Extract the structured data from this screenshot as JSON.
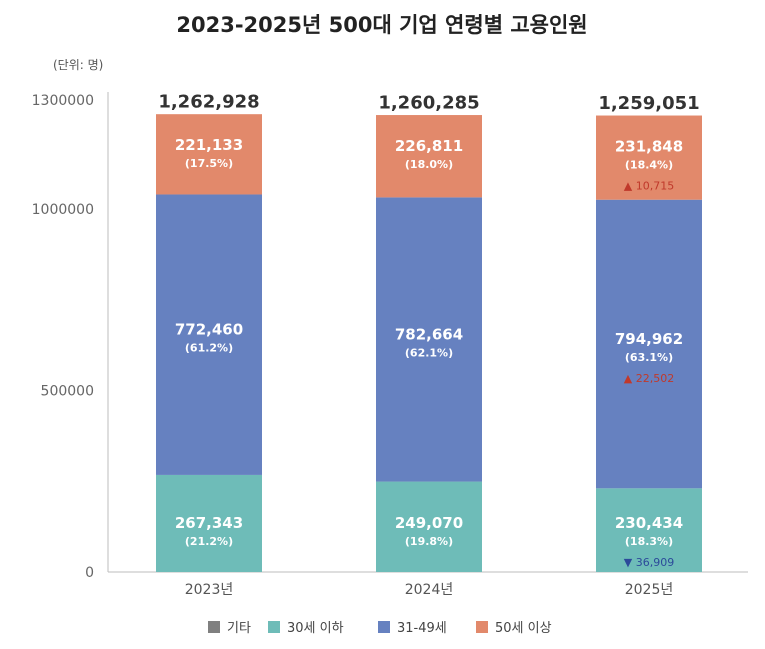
{
  "chart_data": {
    "type": "bar",
    "stacked": true,
    "title": "2023-2025년 500대 기업 연령별 고용인원",
    "unit_label": "(단위: 명)",
    "categories": [
      "2023년",
      "2024년",
      "2025년"
    ],
    "y_ticks": [
      "0",
      "500000",
      "1000000",
      "1300000"
    ],
    "ylim": [
      0,
      1300000
    ],
    "totals": [
      "1,262,928",
      "1,260,285",
      "1,259,051"
    ],
    "total_values": [
      1262928,
      1260285,
      1259051
    ],
    "series": [
      {
        "name": "30세 이하",
        "color": "#6ebcb8",
        "values": [
          267343,
          249070,
          230434
        ],
        "labels": [
          "267,343",
          "249,070",
          "230,434"
        ],
        "pcts": [
          "(21.2%)",
          "(19.8%)",
          "(18.3%)"
        ]
      },
      {
        "name": "31-49세",
        "color": "#6681c0",
        "values": [
          772460,
          782664,
          794962
        ],
        "labels": [
          "772,460",
          "782,664",
          "794,962"
        ],
        "pcts": [
          "(61.2%)",
          "(62.1%)",
          "(63.1%)"
        ]
      },
      {
        "name": "50세 이상",
        "color": "#e2896b",
        "values": [
          221133,
          226811,
          231848
        ],
        "labels": [
          "221,133",
          "226,811",
          "231,848"
        ],
        "pcts": [
          "(17.5%)",
          "(18.0%)",
          "(18.4%)"
        ]
      }
    ],
    "deltas": [
      {
        "category": "2025년",
        "series": "50세 이상",
        "direction": "up",
        "text": "▲ 10,715",
        "color": "#c0392b"
      },
      {
        "category": "2025년",
        "series": "31-49세",
        "direction": "up",
        "text": "▲ 22,502",
        "color": "#c0392b"
      },
      {
        "category": "2025년",
        "series": "30세 이하",
        "direction": "down",
        "text": "▼ 36,909",
        "color": "#2c4a9a"
      }
    ],
    "legend": [
      {
        "name": "기타",
        "color": "#808080"
      },
      {
        "name": "30세 이하",
        "color": "#6ebcb8"
      },
      {
        "name": "31-49세",
        "color": "#6681c0"
      },
      {
        "name": "50세 이상",
        "color": "#e2896b"
      }
    ],
    "legend_position": "bottom"
  }
}
